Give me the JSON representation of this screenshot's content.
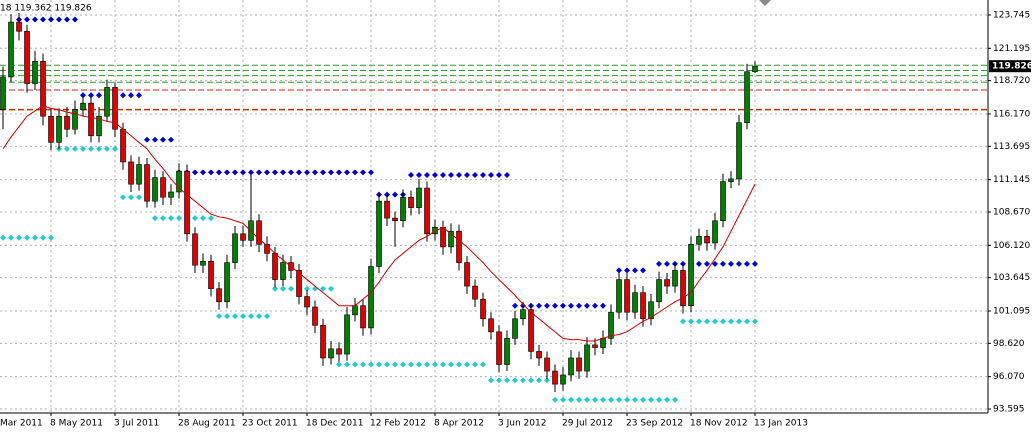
{
  "chart_data": {
    "type": "candlestick",
    "header": "18 119.362 119.826",
    "first_xlabel": "Mar 2011",
    "ylim": [
      93.29,
      124.89
    ],
    "yticks": [
      93.595,
      {
        "value": 96.07,
        "label": "96.070"
      },
      {
        "value": 98.62,
        "label": "98.620"
      },
      101.095,
      103.645,
      {
        "value": 106.12,
        "label": "106.120"
      },
      {
        "value": 108.67,
        "label": "108.670"
      },
      111.145,
      113.695,
      {
        "value": 116.17,
        "label": "116.170"
      },
      {
        "value": 118.72,
        "label": "118.720"
      },
      121.195,
      123.745
    ],
    "grid": true,
    "up_color": "#008000",
    "down_color": "#e00000",
    "ma_color": "#d00000",
    "categories": [
      null,
      null,
      null,
      null,
      null,
      null,
      "8 May 2011",
      null,
      null,
      null,
      null,
      null,
      null,
      null,
      "3 Jul 2011",
      null,
      null,
      null,
      null,
      null,
      null,
      null,
      "28 Aug 2011",
      null,
      null,
      null,
      null,
      null,
      null,
      null,
      "23 Oct 2011",
      null,
      null,
      null,
      null,
      null,
      null,
      null,
      "18 Dec 2011",
      null,
      null,
      null,
      null,
      null,
      null,
      null,
      "12 Feb 2012",
      null,
      null,
      null,
      null,
      null,
      null,
      null,
      "8 Apr 2012",
      null,
      null,
      null,
      null,
      null,
      null,
      null,
      "3 Jun 2012",
      null,
      null,
      null,
      null,
      null,
      null,
      null,
      "29 Jul 2012",
      null,
      null,
      null,
      null,
      null,
      null,
      null,
      "23 Sep 2012",
      null,
      null,
      null,
      null,
      null,
      null,
      null,
      "18 Nov 2012",
      null,
      null,
      null,
      null,
      null,
      null,
      null,
      "13 Jan 2013"
    ],
    "ohlc": [
      [
        116.5,
        119.8,
        115.0,
        119.0
      ],
      [
        119.0,
        123.8,
        118.6,
        123.2
      ],
      [
        123.2,
        123.9,
        121.8,
        122.5
      ],
      [
        122.5,
        123.0,
        117.8,
        118.5
      ],
      [
        118.5,
        121.0,
        118.0,
        120.2
      ],
      [
        120.2,
        120.8,
        115.3,
        116.0
      ],
      [
        116.0,
        116.6,
        113.4,
        114.0
      ],
      [
        114.0,
        116.6,
        113.5,
        116.0
      ],
      [
        116.0,
        116.7,
        114.4,
        115.0
      ],
      [
        115.0,
        117.2,
        114.6,
        116.5
      ],
      [
        116.5,
        117.6,
        116.0,
        117.0
      ],
      [
        117.0,
        117.5,
        114.0,
        114.5
      ],
      [
        114.5,
        116.7,
        114.0,
        116.0
      ],
      [
        116.0,
        118.8,
        115.6,
        118.2
      ],
      [
        118.2,
        118.6,
        114.4,
        115.0
      ],
      [
        115.0,
        115.5,
        111.9,
        112.5
      ],
      [
        112.5,
        113.0,
        110.2,
        110.8
      ],
      [
        110.8,
        112.9,
        110.3,
        112.3
      ],
      [
        112.3,
        112.8,
        109.0,
        109.5
      ],
      [
        109.5,
        111.9,
        109.0,
        111.3
      ],
      [
        111.3,
        111.8,
        109.2,
        109.8
      ],
      [
        109.8,
        110.8,
        109.2,
        110.2
      ],
      [
        110.2,
        112.4,
        109.7,
        111.8
      ],
      [
        111.8,
        112.3,
        106.4,
        107.0
      ],
      [
        107.0,
        107.5,
        104.0,
        104.6
      ],
      [
        104.6,
        105.5,
        104.0,
        104.9
      ],
      [
        104.9,
        105.4,
        102.2,
        102.8
      ],
      [
        102.8,
        103.3,
        101.2,
        101.8
      ],
      [
        101.8,
        105.4,
        101.3,
        104.8
      ],
      [
        104.8,
        107.6,
        104.3,
        107.0
      ],
      [
        107.0,
        107.6,
        106.0,
        106.5
      ],
      [
        106.5,
        111.5,
        106.0,
        108.0
      ],
      [
        108.0,
        108.5,
        105.6,
        106.2
      ],
      [
        106.2,
        106.8,
        104.9,
        105.5
      ],
      [
        105.5,
        106.0,
        102.9,
        103.5
      ],
      [
        103.5,
        105.4,
        103.0,
        104.8
      ],
      [
        104.8,
        105.3,
        103.6,
        104.2
      ],
      [
        104.2,
        104.7,
        101.6,
        102.2
      ],
      [
        102.2,
        102.7,
        100.8,
        101.4
      ],
      [
        101.4,
        101.9,
        99.4,
        100.0
      ],
      [
        100.0,
        100.5,
        96.9,
        97.5
      ],
      [
        97.5,
        98.8,
        97.0,
        98.2
      ],
      [
        98.2,
        98.7,
        97.2,
        97.8
      ],
      [
        97.8,
        101.4,
        97.3,
        100.8
      ],
      [
        100.8,
        102.1,
        100.3,
        101.5
      ],
      [
        101.5,
        102.0,
        99.2,
        99.8
      ],
      [
        99.8,
        105.1,
        99.3,
        104.5
      ],
      [
        104.5,
        110.1,
        104.0,
        109.5
      ],
      [
        109.5,
        110.0,
        107.6,
        108.2
      ],
      [
        108.2,
        108.7,
        106.0,
        108.0
      ],
      [
        108.0,
        110.4,
        107.5,
        109.8
      ],
      [
        109.8,
        110.3,
        108.4,
        109.0
      ],
      [
        109.0,
        111.2,
        108.5,
        110.5
      ],
      [
        110.5,
        111.0,
        106.4,
        107.0
      ],
      [
        107.0,
        108.1,
        106.5,
        107.5
      ],
      [
        107.5,
        108.0,
        105.4,
        106.0
      ],
      [
        106.0,
        107.8,
        105.5,
        107.2
      ],
      [
        107.2,
        107.7,
        104.2,
        104.8
      ],
      [
        104.8,
        105.3,
        102.4,
        103.0
      ],
      [
        103.0,
        103.5,
        101.4,
        102.0
      ],
      [
        102.0,
        102.5,
        99.9,
        100.5
      ],
      [
        100.5,
        101.0,
        98.9,
        99.5
      ],
      [
        99.5,
        100.0,
        96.4,
        97.0
      ],
      [
        97.0,
        99.6,
        96.5,
        99.0
      ],
      [
        99.0,
        101.1,
        98.5,
        100.5
      ],
      [
        100.5,
        101.8,
        100.0,
        101.2
      ],
      [
        101.2,
        101.7,
        97.4,
        98.0
      ],
      [
        98.0,
        98.5,
        96.9,
        97.5
      ],
      [
        97.5,
        98.0,
        95.9,
        96.5
      ],
      [
        96.5,
        97.0,
        94.9,
        95.5
      ],
      [
        95.5,
        96.8,
        95.0,
        96.2
      ],
      [
        96.2,
        98.1,
        95.7,
        97.5
      ],
      [
        97.5,
        98.0,
        95.9,
        96.5
      ],
      [
        96.5,
        99.1,
        96.0,
        98.5
      ],
      [
        98.5,
        99.0,
        97.7,
        98.3
      ],
      [
        98.3,
        99.6,
        97.8,
        99.0
      ],
      [
        99.0,
        101.6,
        98.5,
        101.0
      ],
      [
        101.0,
        104.1,
        100.5,
        103.5
      ],
      [
        103.5,
        104.0,
        100.4,
        101.0
      ],
      [
        101.0,
        103.1,
        100.5,
        102.5
      ],
      [
        102.5,
        103.0,
        99.9,
        100.5
      ],
      [
        100.5,
        102.4,
        100.0,
        101.8
      ],
      [
        101.8,
        104.1,
        101.3,
        103.5
      ],
      [
        103.5,
        104.0,
        102.4,
        103.0
      ],
      [
        103.0,
        104.8,
        102.5,
        104.2
      ],
      [
        104.2,
        104.7,
        100.9,
        101.5
      ],
      [
        101.5,
        106.8,
        101.0,
        106.2
      ],
      [
        106.2,
        107.4,
        105.7,
        106.8
      ],
      [
        106.8,
        107.3,
        105.7,
        106.3
      ],
      [
        106.3,
        108.6,
        105.8,
        108.0
      ],
      [
        108.0,
        111.6,
        107.5,
        111.0
      ],
      [
        111.0,
        111.8,
        110.5,
        111.2
      ],
      [
        111.2,
        116.1,
        110.7,
        115.5
      ],
      [
        115.5,
        120.0,
        115.0,
        119.4
      ],
      [
        119.4,
        120.2,
        119.3,
        119.826
      ]
    ],
    "ma": [
      113.5,
      114.4,
      115.2,
      116.0,
      116.4,
      116.8,
      116.6,
      116.5,
      116.3,
      116.2,
      116.0,
      115.9,
      115.8,
      115.6,
      115.5,
      115.0,
      114.5,
      114.0,
      113.5,
      112.7,
      112.0,
      111.2,
      110.5,
      110.0,
      109.5,
      109.0,
      108.5,
      108.3,
      108.2,
      108.0,
      107.8,
      107.2,
      106.6,
      106.1,
      105.5,
      105.0,
      104.5,
      104.0,
      103.5,
      103.0,
      102.5,
      102.0,
      101.5,
      101.5,
      101.5,
      102.0,
      102.5,
      103.3,
      104.2,
      105.0,
      105.5,
      106.0,
      106.5,
      106.8,
      107.2,
      107.5,
      107.0,
      106.5,
      106.0,
      105.4,
      104.8,
      104.1,
      103.5,
      102.9,
      102.3,
      101.6,
      101.0,
      100.5,
      100.0,
      99.5,
      99.0,
      98.9,
      98.9,
      98.8,
      98.8,
      99.0,
      99.2,
      99.3,
      99.5,
      99.9,
      100.3,
      100.6,
      101.0,
      101.4,
      101.8,
      102.1,
      102.5,
      103.4,
      104.2,
      105.1,
      106.0,
      107.2,
      108.4,
      109.6,
      110.8
    ],
    "levels": [
      {
        "price": 123.4,
        "from": 2,
        "to": 9,
        "color": "#0000dd"
      },
      {
        "price": 117.6,
        "from": 10,
        "to": 17,
        "color": "#0000dd"
      },
      {
        "price": 114.2,
        "from": 18,
        "to": 21,
        "color": "#0000dd"
      },
      {
        "price": 111.7,
        "from": 22,
        "to": 46,
        "color": "#0000dd"
      },
      {
        "price": 110.0,
        "from": 47,
        "to": 50,
        "color": "#0000dd"
      },
      {
        "price": 111.5,
        "from": 51,
        "to": 63,
        "color": "#0000dd"
      },
      {
        "price": 101.5,
        "from": 64,
        "to": 75,
        "color": "#0000dd"
      },
      {
        "price": 104.2,
        "from": 77,
        "to": 80,
        "color": "#0000dd"
      },
      {
        "price": 104.7,
        "from": 82,
        "to": 94,
        "color": "#0000dd"
      },
      {
        "price": 106.7,
        "from": 0,
        "to": 6,
        "color": "#22cccc"
      },
      {
        "price": 113.5,
        "from": 7,
        "to": 14,
        "color": "#22cccc"
      },
      {
        "price": 109.8,
        "from": 15,
        "to": 18,
        "color": "#22cccc"
      },
      {
        "price": 108.2,
        "from": 19,
        "to": 26,
        "color": "#22cccc"
      },
      {
        "price": 100.7,
        "from": 27,
        "to": 33,
        "color": "#22cccc"
      },
      {
        "price": 102.8,
        "from": 34,
        "to": 41,
        "color": "#22cccc"
      },
      {
        "price": 97.0,
        "from": 42,
        "to": 60,
        "color": "#22cccc"
      },
      {
        "price": 95.8,
        "from": 61,
        "to": 68,
        "color": "#22cccc"
      },
      {
        "price": 94.3,
        "from": 69,
        "to": 84,
        "color": "#22cccc"
      },
      {
        "price": 100.3,
        "from": 85,
        "to": 94,
        "color": "#22cccc"
      }
    ],
    "hlines": [
      {
        "price": 119.9,
        "color": "#2e9e2e"
      },
      {
        "price": 119.5,
        "color": "#2e9e2e"
      },
      {
        "price": 119.1,
        "color": "#2e9e2e"
      },
      {
        "price": 118.6,
        "color": "#2e9e2e"
      },
      {
        "price": 118.0,
        "color": "#d02020"
      },
      {
        "price": 116.5,
        "color": "#c03000"
      }
    ]
  }
}
